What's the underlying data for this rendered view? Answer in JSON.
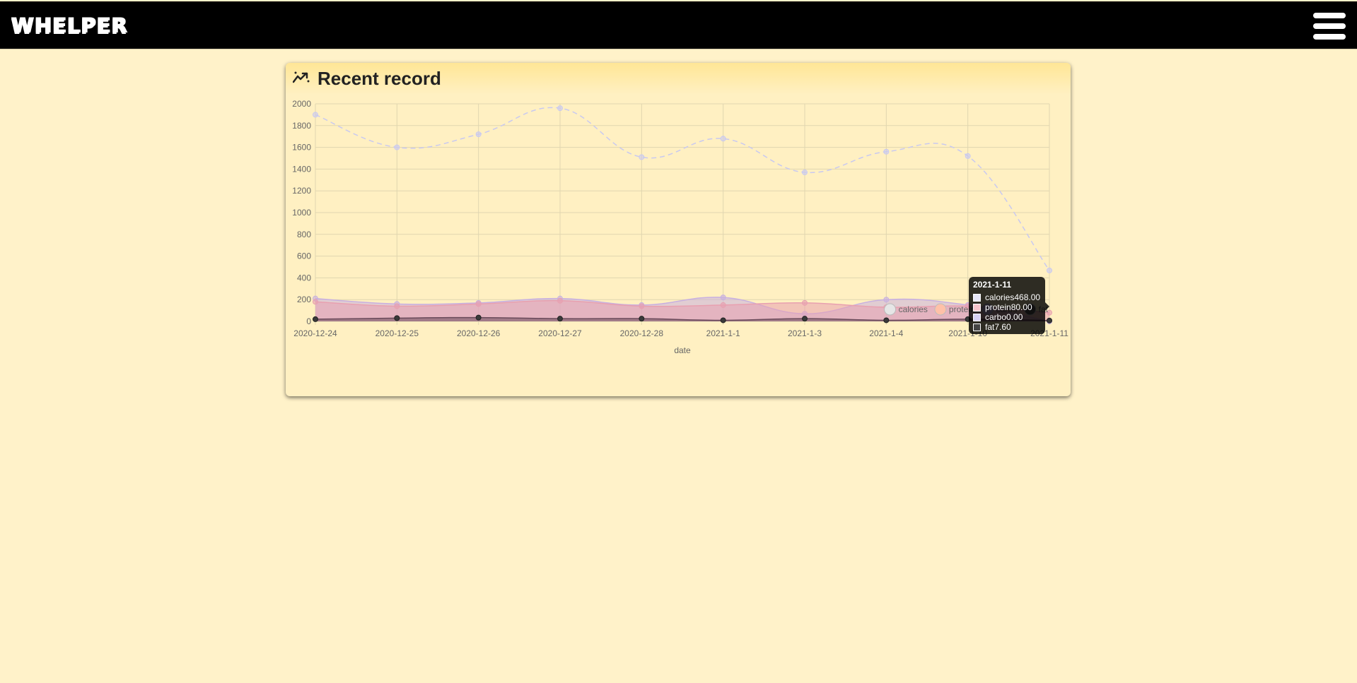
{
  "header": {
    "brand": "WHELPER",
    "menu_icon": "hamburger-menu-icon"
  },
  "card": {
    "title": "Recent record",
    "icon": "trending-chart-icon"
  },
  "chart_data": {
    "type": "line",
    "xlabel": "date",
    "ylabel": "",
    "ylim": [
      0,
      2000
    ],
    "yticks": [
      0,
      200,
      400,
      600,
      800,
      1000,
      1200,
      1400,
      1600,
      1800,
      2000
    ],
    "categories": [
      "2020-12-24",
      "2020-12-25",
      "2020-12-26",
      "2020-12-27",
      "2020-12-28",
      "2021-1-1",
      "2021-1-3",
      "2021-1-4",
      "2021-1-10",
      "2021-1-11"
    ],
    "grid": true,
    "legend_position": "bottom-right",
    "series": [
      {
        "name": "calories",
        "values": [
          1900,
          1600,
          1720,
          1960,
          1510,
          1680,
          1370,
          1560,
          1520,
          468
        ],
        "color": "#c9c9f0",
        "style": "dashed",
        "legend_color": "#e6e6e6"
      },
      {
        "name": "protein",
        "values": [
          180,
          140,
          160,
          190,
          140,
          150,
          170,
          130,
          140,
          80
        ],
        "color": "#e8a0b0",
        "style": "area",
        "legend_color": "#ffc1a8"
      },
      {
        "name": "carbo",
        "values": [
          210,
          160,
          170,
          210,
          150,
          220,
          70,
          200,
          150,
          0
        ],
        "color": "#c8b0e0",
        "style": "area",
        "legend_color": "#c6b6e6"
      },
      {
        "name": "fat",
        "values": [
          20,
          30,
          35,
          25,
          25,
          10,
          25,
          10,
          20,
          7.6
        ],
        "color": "#6a4a5a",
        "style": "area",
        "legend_color": "#555555"
      }
    ],
    "tooltip": {
      "title": "2021-1-11",
      "rows": [
        "calories468.00",
        "protein80.00",
        "carbo0.00",
        "fat7.60"
      ]
    }
  }
}
